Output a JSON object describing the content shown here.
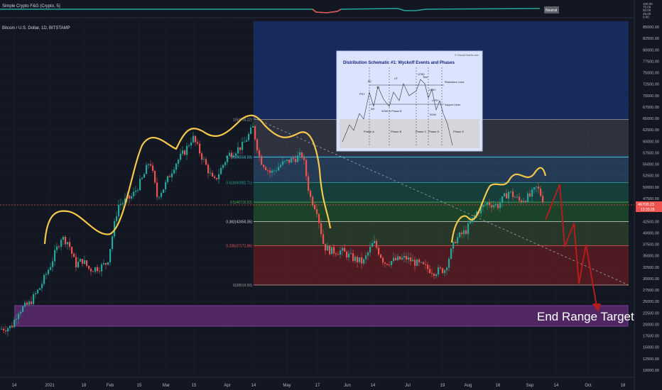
{
  "indicator": {
    "title": "Simple Crypto F&G (Crypto, 5)",
    "badge": "Neutral",
    "axis": [
      "100.00",
      "75.00",
      "50.00",
      "25.00",
      "0.00"
    ]
  },
  "main": {
    "title": "Bitcoin / U.S. Dollar, 1D, BITSTAMP",
    "current_price": "46708.23",
    "countdown": "12:33:28",
    "target_label": "End Range Target"
  },
  "price_axis": [
    "85000.00",
    "82500.00",
    "80000.00",
    "77500.00",
    "75000.00",
    "72500.00",
    "70000.00",
    "67500.00",
    "65000.00",
    "62500.00",
    "60000.00",
    "57500.00",
    "55000.00",
    "52500.00",
    "50000.00",
    "47500.00",
    "45000.00",
    "42500.00",
    "40000.00",
    "37500.00",
    "35000.00",
    "32500.00",
    "30000.00",
    "27500.00",
    "25000.00",
    "22500.00",
    "20000.00",
    "17500.00",
    "15000.00",
    "12500.00",
    "10000.00"
  ],
  "time_axis": [
    "14",
    "2021",
    "18",
    "Feb",
    "15",
    "Mar",
    "15",
    "Apr",
    "14",
    "May",
    "17",
    "Jun",
    "14",
    "Jul",
    "19",
    "Aug",
    "16",
    "Sep",
    "14",
    "Oct",
    "18"
  ],
  "fib_levels": [
    {
      "label": "1(64793.22)",
      "price": 64793
    },
    {
      "label": "0.786(56556.59)",
      "price": 56556
    },
    {
      "label": "0.618(50982.71)",
      "price": 50982
    },
    {
      "label": "0.5(46716.53)",
      "price": 46716
    },
    {
      "label": "0.382(42450.35)",
      "price": 42450
    },
    {
      "label": "0.236(37171.86)",
      "price": 37171
    },
    {
      "label": "0(28619.50)",
      "price": 28619
    }
  ],
  "schematic": {
    "title": "Distribution Schematic #1: Wyckoff Events and Phases",
    "source": "© StockCharts.com",
    "events": [
      "PSY",
      "BC",
      "AR",
      "ST",
      "SOW in Phase B",
      "UT",
      "UTAD",
      "Test",
      "LPSY",
      "LPSY",
      "SOW"
    ],
    "lines": [
      "Resistance Lines",
      "Support Lines"
    ],
    "phases": [
      "Phase A",
      "Phase B",
      "Phase C",
      "Phase D",
      "Phase E"
    ]
  },
  "colors": {
    "up": "#26a69a",
    "down": "#ef5350",
    "curve": "#f5c84c",
    "projection": "#b71c1c"
  }
}
